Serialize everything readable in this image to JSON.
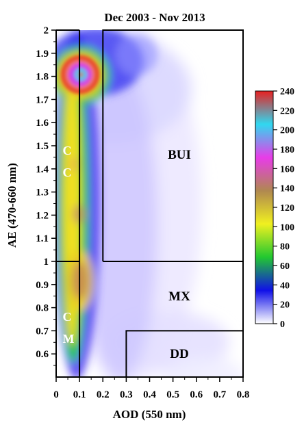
{
  "chart_data": {
    "type": "heatmap",
    "title": "Dec 2003 - Nov 2013",
    "xlabel": "AOD (550 nm)",
    "ylabel": "AE (470-660 nm)",
    "xlim": [
      0,
      0.8
    ],
    "ylim": [
      0.5,
      2.0
    ],
    "x_ticks": [
      "0",
      "0.1",
      "0.2",
      "0.3",
      "0.4",
      "0.5",
      "0.6",
      "0.7",
      "0.8"
    ],
    "x_tick_values": [
      0,
      0.1,
      0.2,
      0.3,
      0.4,
      0.5,
      0.6,
      0.7,
      0.8
    ],
    "y_ticks": [
      "0.6",
      "0.7",
      "0.8",
      "0.9",
      "1",
      "1.1",
      "1.2",
      "1.3",
      "1.4",
      "1.5",
      "1.6",
      "1.7",
      "1.8",
      "1.9",
      "2"
    ],
    "y_tick_values": [
      0.6,
      0.7,
      0.8,
      0.9,
      1.0,
      1.1,
      1.2,
      1.3,
      1.4,
      1.5,
      1.6,
      1.7,
      1.8,
      1.9,
      2.0
    ],
    "colorbar": {
      "min": 0,
      "max": 240,
      "ticks": [
        "0",
        "20",
        "40",
        "60",
        "80",
        "100",
        "120",
        "140",
        "160",
        "180",
        "200",
        "220",
        "240"
      ],
      "tick_values": [
        0,
        20,
        40,
        60,
        80,
        100,
        120,
        140,
        160,
        180,
        200,
        220,
        240
      ],
      "colors": [
        "#ffffff",
        "#1010e8",
        "#22c830",
        "#f0f020",
        "#b08850",
        "#e83ce8",
        "#30d8f0",
        "#e82020"
      ]
    },
    "density_peaks": [
      {
        "aod": 0.11,
        "ae": 1.81,
        "value": 240
      },
      {
        "aod": 0.1,
        "ae": 0.91,
        "value": 80
      },
      {
        "aod": 0.1,
        "ae": 1.2,
        "value": 65
      },
      {
        "aod": 0.09,
        "ae": 1.42,
        "value": 60
      },
      {
        "aod": 0.08,
        "ae": 0.7,
        "value": 45
      }
    ],
    "regions": [
      {
        "label": "BUI",
        "aod_range": [
          0.2,
          0.8
        ],
        "ae_range": [
          1.0,
          2.0
        ]
      },
      {
        "label": "MX",
        "aod_range": [
          0.1,
          0.8
        ],
        "ae_range": [
          0.7,
          1.0
        ]
      },
      {
        "label": "DD",
        "aod_range": [
          0.3,
          0.8
        ],
        "ae_range": [
          0.5,
          0.7
        ]
      },
      {
        "label": "C\nC",
        "aod_range": [
          0.0,
          0.1
        ],
        "ae_range": [
          1.0,
          2.0
        ]
      },
      {
        "label": "C\nM",
        "aod_range": [
          0.0,
          0.1
        ],
        "ae_range": [
          0.5,
          1.0
        ]
      }
    ],
    "labels": {
      "bui": "BUI",
      "mx": "MX",
      "dd": "DD",
      "cc1": "C",
      "cc2": "C",
      "cm1": "C",
      "cm2": "M"
    }
  }
}
